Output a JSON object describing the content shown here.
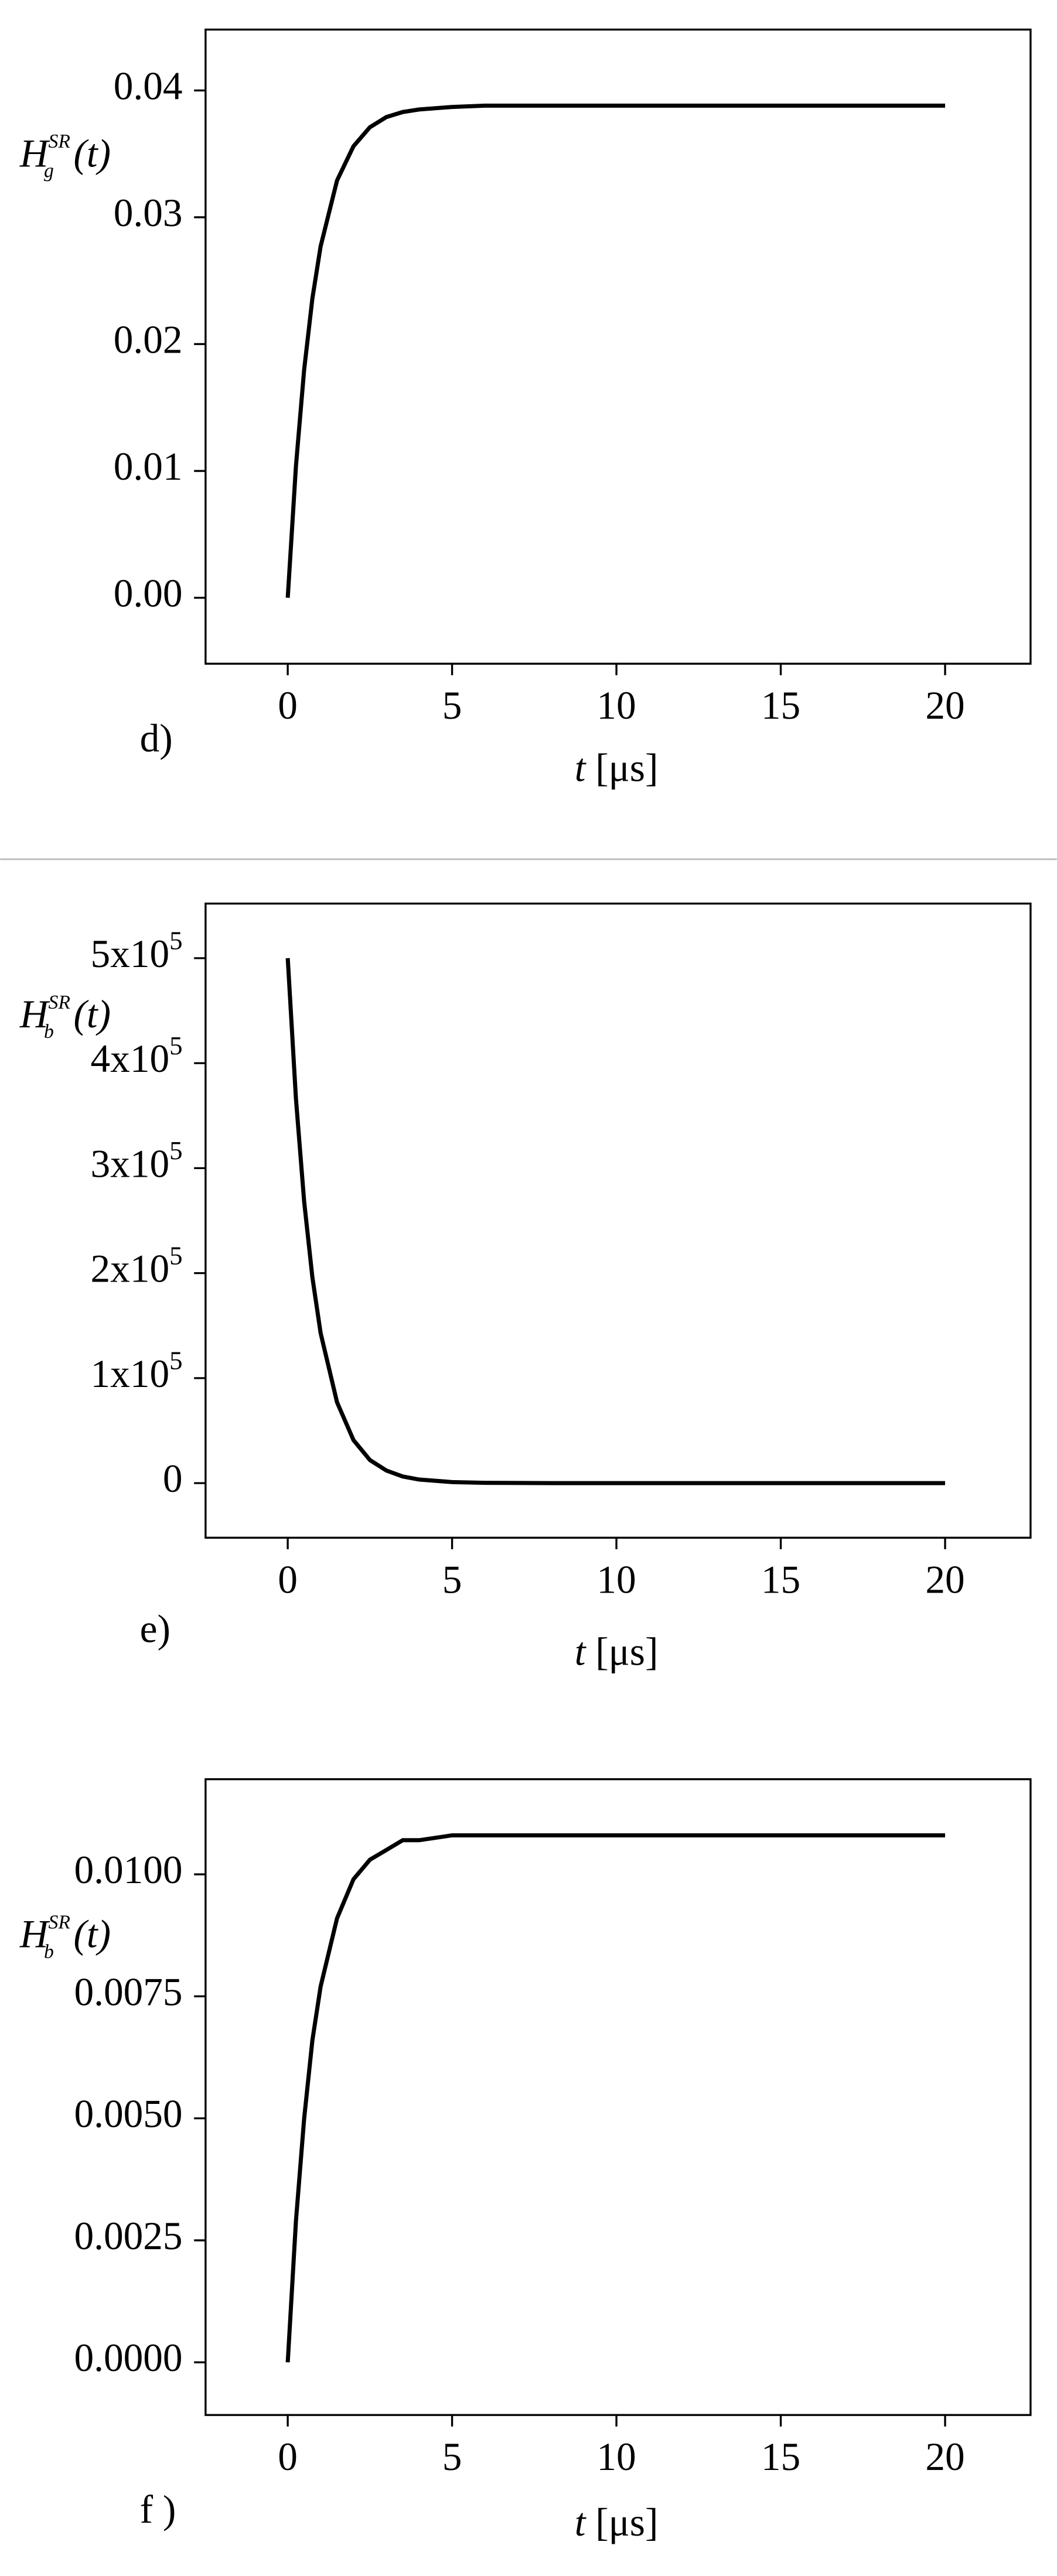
{
  "chart_data": [
    {
      "type": "line",
      "panel": "d)",
      "color": "#000000",
      "ylabel": {
        "symbol": "H",
        "sub": "g",
        "sup": "SR",
        "arg": "(t)"
      },
      "xlabel": {
        "var": "t",
        "unit": "[μs]"
      },
      "x": [
        0,
        0.25,
        0.5,
        0.75,
        1,
        1.5,
        2,
        2.5,
        3,
        3.5,
        4,
        5,
        6,
        8,
        10,
        15,
        20
      ],
      "values": [
        0,
        0.0104,
        0.018,
        0.0236,
        0.0277,
        0.0329,
        0.0356,
        0.0371,
        0.0379,
        0.0383,
        0.0385,
        0.0387,
        0.0388,
        0.0388,
        0.0388,
        0.0388,
        0.0388
      ],
      "xlim": [
        -2.5,
        22.6
      ],
      "xticks": [
        0,
        5,
        10,
        15,
        20
      ],
      "ylim": [
        -0.0052,
        0.0448
      ],
      "yticks": [
        {
          "value": 0,
          "label": "0.00"
        },
        0.01,
        0.02,
        0.03,
        0.04
      ]
    },
    {
      "type": "line",
      "panel": "e)",
      "color": "#000000",
      "ylabel": {
        "symbol": "H",
        "sub": "b",
        "sup": "SR",
        "arg": "(t)"
      },
      "xlabel": {
        "var": "t",
        "unit": "[μs]"
      },
      "x": [
        0,
        0.25,
        0.5,
        0.75,
        1,
        1.5,
        2,
        2.5,
        3,
        3.5,
        4,
        5,
        6,
        8,
        10,
        15,
        20
      ],
      "values": [
        500000,
        366000,
        268000,
        196000,
        143000,
        77000,
        41000,
        22000,
        12000,
        6300,
        3400,
        1000,
        300,
        0,
        0,
        0,
        0
      ],
      "xlim": [
        -2.5,
        22.6
      ],
      "xticks": [
        0,
        5,
        10,
        15,
        20
      ],
      "ylim": [
        -52000,
        552000
      ],
      "yticks": [
        0,
        {
          "value": 100000,
          "label": "1x10",
          "sup": "5"
        },
        {
          "value": 200000,
          "label": "2x10",
          "sup": "5"
        },
        {
          "value": 300000,
          "label": "3x10",
          "sup": "5"
        },
        {
          "value": 400000,
          "label": "4x10",
          "sup": "5"
        },
        {
          "value": 500000,
          "label": "5x10",
          "sup": "5"
        }
      ]
    },
    {
      "type": "line",
      "panel": "f )",
      "color": "#000000",
      "ylabel": {
        "symbol": "H",
        "sub": "b",
        "sup": "SR",
        "arg": "(t)"
      },
      "xlabel": {
        "var": "t",
        "unit": "[μs]"
      },
      "x": [
        0,
        0.25,
        0.5,
        0.75,
        1,
        1.5,
        2,
        2.5,
        3,
        3.5,
        4,
        5,
        6,
        8,
        10,
        15,
        20
      ],
      "values": [
        0,
        0.0029,
        0.005,
        0.0066,
        0.0077,
        0.0091,
        0.0099,
        0.0103,
        0.0105,
        0.0107,
        0.0107,
        0.0108,
        0.0108,
        0.0108,
        0.0108,
        0.0108,
        0.0108
      ],
      "xlim": [
        -2.5,
        22.6
      ],
      "xticks": [
        0,
        5,
        10,
        15,
        20
      ],
      "ylim": [
        -0.00108,
        0.01195
      ],
      "yticks": [
        {
          "value": 0,
          "label": "0.0000"
        },
        0.0025,
        {
          "value": 0.005,
          "label": "0.0050"
        },
        {
          "value": 0.0075,
          "label": "0.0075"
        },
        {
          "value": 0.01,
          "label": "0.0100"
        }
      ]
    }
  ]
}
